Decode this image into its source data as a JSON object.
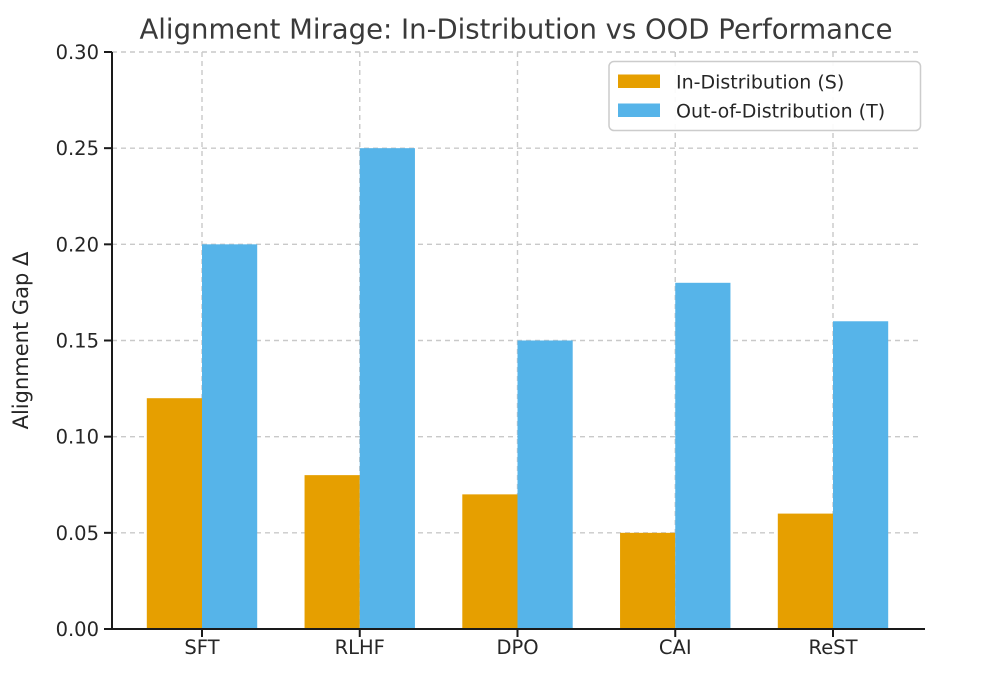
{
  "chart_data": {
    "type": "bar",
    "title": "Alignment Mirage: In-Distribution vs OOD Performance",
    "xlabel": "",
    "ylabel": "Alignment Gap Δ",
    "categories": [
      "SFT",
      "RLHF",
      "DPO",
      "CAI",
      "ReST"
    ],
    "series": [
      {
        "name": "In-Distribution (S)",
        "color": "#E69F00",
        "values": [
          0.12,
          0.08,
          0.07,
          0.05,
          0.06
        ]
      },
      {
        "name": "Out-of-Distribution (T)",
        "color": "#56B4E9",
        "values": [
          0.2,
          0.25,
          0.15,
          0.18,
          0.16
        ]
      }
    ],
    "ylim": [
      0.0,
      0.3
    ],
    "yticks": [
      0.0,
      0.05,
      0.1,
      0.15,
      0.2,
      0.25,
      0.3
    ],
    "ytick_labels": [
      "0.00",
      "0.05",
      "0.10",
      "0.15",
      "0.20",
      "0.25",
      "0.30"
    ],
    "grid": "dashed",
    "grid_color": "#c9c9c9",
    "legend_position": "upper right",
    "background": "#ffffff",
    "bar_colors": {
      "in_distribution": "#E69F00",
      "out_of_distribution": "#56B4E9"
    },
    "text_color": "#262626",
    "title_color": "#3a3a3a"
  }
}
